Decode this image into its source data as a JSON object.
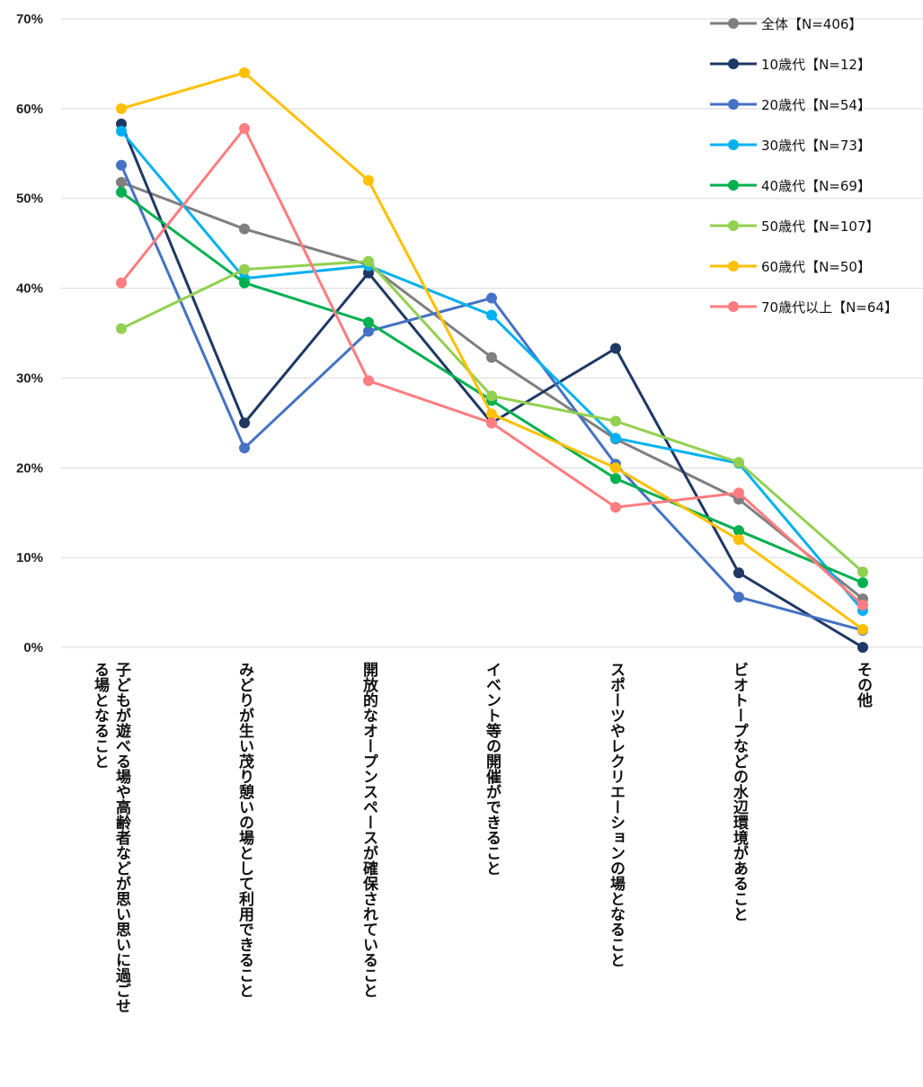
{
  "chart_data": {
    "type": "line",
    "title": "",
    "xlabel": "",
    "ylabel": "",
    "ylim": [
      0,
      70
    ],
    "ytick_labels": [
      "0%",
      "10%",
      "20%",
      "30%",
      "40%",
      "50%",
      "60%",
      "70%"
    ],
    "grid": "horizontal",
    "legend_position": "top-right",
    "categories": [
      "子どもが遊べる場や高齢者などが思い思いに過ごせる場となること",
      "みどりが生い茂り憩いの場として利用できること",
      "開放的なオープンスペースが確保されていること",
      "イベント等の開催ができること",
      "スポーツやレクリエーションの場となること",
      "ビオトープなどの水辺環境があること",
      "その他"
    ],
    "series": [
      {
        "name": "全体【N=406】",
        "color": "#7f7f7f",
        "values": [
          51.8,
          46.6,
          42.6,
          32.3,
          23.2,
          16.5,
          5.4
        ]
      },
      {
        "name": "10歳代【N=12】",
        "color": "#1f3864",
        "values": [
          58.3,
          25.0,
          41.7,
          25.0,
          33.3,
          8.3,
          0.0
        ]
      },
      {
        "name": "20歳代【N=54】",
        "color": "#4472c4",
        "values": [
          53.7,
          22.2,
          35.2,
          38.9,
          20.4,
          5.6,
          1.9
        ]
      },
      {
        "name": "30歳代【N=73】",
        "color": "#00b0f0",
        "values": [
          57.5,
          41.1,
          42.5,
          37.0,
          23.3,
          20.5,
          4.1
        ]
      },
      {
        "name": "40歳代【N=69】",
        "color": "#00b050",
        "values": [
          50.7,
          40.6,
          36.2,
          27.5,
          18.8,
          13.0,
          7.2
        ]
      },
      {
        "name": "50歳代【N=107】",
        "color": "#92d050",
        "values": [
          35.5,
          42.1,
          43.0,
          28.0,
          25.2,
          20.6,
          8.4
        ]
      },
      {
        "name": "60歳代【N=50】",
        "color": "#ffc000",
        "values": [
          60.0,
          64.0,
          52.0,
          26.0,
          20.0,
          12.0,
          2.0
        ]
      },
      {
        "name": "70歳代以上【N=64】",
        "color": "#ff7c80",
        "values": [
          40.6,
          57.8,
          29.7,
          25.0,
          15.6,
          17.2,
          4.7
        ]
      }
    ]
  }
}
